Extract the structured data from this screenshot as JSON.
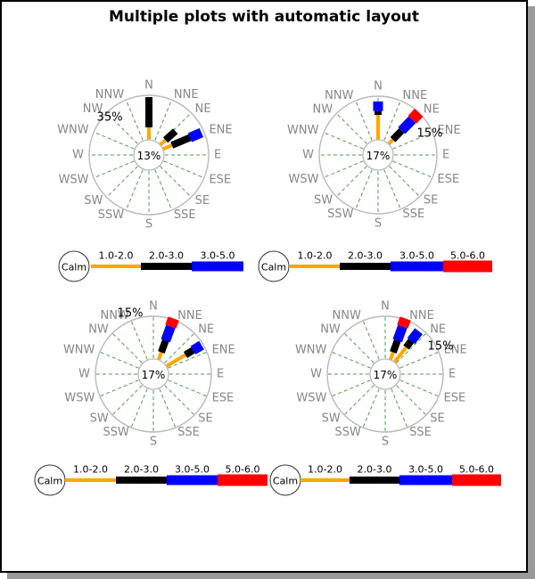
{
  "title": "Multiple plots with automatic layout",
  "colors": {
    "background": "#ffffff",
    "frame_border": "#000000",
    "frame_shadow": "#9a9a9a",
    "grid_line": "#4e9d4e",
    "circle_stroke": "#b9b9b9",
    "direction_label": "#878787",
    "text": "#000000"
  },
  "chart_data": {
    "type": "windrose",
    "title": "Multiple plots with automatic layout",
    "layout_hint": "2x2 grid of wind rose plots, each with a speed-range legend below",
    "direction_labels": [
      "N",
      "NNE",
      "NE",
      "ENE",
      "E",
      "ESE",
      "SE",
      "SSE",
      "S",
      "SSW",
      "SW",
      "WSW",
      "W",
      "WNW",
      "NW",
      "NNW"
    ],
    "speed_ranges": [
      {
        "label": "1.0-2.0",
        "color": "#ffa500",
        "width": 4
      },
      {
        "label": "2.0-3.0",
        "color": "#000000",
        "width": 8
      },
      {
        "label": "3.0-5.0",
        "color": "#0000ff",
        "width": 11
      },
      {
        "label": "5.0-6.0",
        "color": "#ff0000",
        "width": 13
      }
    ],
    "calm_label_text": "Calm",
    "roses": [
      {
        "calm_label": "13%",
        "calm_pct": 13,
        "scale_label": "35%",
        "spokes": [
          {
            "angle_deg": 0,
            "segments": [
              {
                "range": "1.0-2.0",
                "from": 0,
                "to": 0.28
              },
              {
                "range": "2.0-3.0",
                "from": 0.28,
                "to": 0.96
              }
            ]
          },
          {
            "angle_deg": 48,
            "segments": [
              {
                "range": "1.0-2.0",
                "from": 0,
                "to": 0.16
              },
              {
                "range": "2.0-3.0",
                "from": 0.16,
                "to": 0.46
              }
            ]
          },
          {
            "angle_deg": 67,
            "segments": [
              {
                "range": "1.0-2.0",
                "from": 0,
                "to": 0.22
              },
              {
                "range": "2.0-3.0",
                "from": 0.22,
                "to": 0.66
              },
              {
                "range": "3.0-5.0",
                "from": 0.66,
                "to": 0.94
              }
            ]
          }
        ]
      },
      {
        "calm_label": "17%",
        "calm_pct": 17,
        "scale_label": "15%",
        "spokes": [
          {
            "angle_deg": 0,
            "segments": [
              {
                "range": "1.0-2.0",
                "from": 0,
                "to": 0.57
              },
              {
                "range": "2.0-3.0",
                "from": 0.57,
                "to": 0.66
              },
              {
                "range": "3.0-5.0",
                "from": 0.66,
                "to": 0.88
              }
            ]
          },
          {
            "angle_deg": 44,
            "segments": [
              {
                "range": "1.0-2.0",
                "from": 0,
                "to": 0.14
              },
              {
                "range": "2.0-3.0",
                "from": 0.14,
                "to": 0.43
              },
              {
                "range": "3.0-5.0",
                "from": 0.43,
                "to": 0.78
              },
              {
                "range": "5.0-6.0",
                "from": 0.78,
                "to": 1.0
              }
            ]
          }
        ]
      },
      {
        "calm_label": "17%",
        "calm_pct": 17,
        "scale_label": "15%",
        "spokes": [
          {
            "angle_deg": 20,
            "segments": [
              {
                "range": "1.0-2.0",
                "from": 0,
                "to": 0.19
              },
              {
                "range": "2.0-3.0",
                "from": 0.19,
                "to": 0.48
              },
              {
                "range": "3.0-5.0",
                "from": 0.48,
                "to": 0.83
              },
              {
                "range": "5.0-6.0",
                "from": 0.83,
                "to": 1.03
              }
            ]
          },
          {
            "angle_deg": 59,
            "segments": [
              {
                "range": "1.0-2.0",
                "from": 0,
                "to": 0.52
              },
              {
                "range": "2.0-3.0",
                "from": 0.52,
                "to": 0.73
              },
              {
                "range": "3.0-5.0",
                "from": 0.73,
                "to": 0.96
              }
            ]
          }
        ]
      },
      {
        "calm_label": "17%",
        "calm_pct": 17,
        "scale_label": "15%",
        "spokes": [
          {
            "angle_deg": 20,
            "segments": [
              {
                "range": "1.0-2.0",
                "from": 0,
                "to": 0.19
              },
              {
                "range": "2.0-3.0",
                "from": 0.19,
                "to": 0.48
              },
              {
                "range": "3.0-5.0",
                "from": 0.48,
                "to": 0.83
              },
              {
                "range": "5.0-6.0",
                "from": 0.83,
                "to": 1.03
              }
            ]
          },
          {
            "angle_deg": 38,
            "segments": [
              {
                "range": "1.0-2.0",
                "from": 0,
                "to": 0.44
              },
              {
                "range": "2.0-3.0",
                "from": 0.44,
                "to": 0.63
              },
              {
                "range": "3.0-5.0",
                "from": 0.63,
                "to": 0.92
              }
            ]
          }
        ]
      }
    ],
    "legends": [
      {
        "calm_label": "Calm",
        "ranges": [
          "1.0-2.0",
          "2.0-3.0",
          "3.0-5.0"
        ]
      },
      {
        "calm_label": "Calm",
        "ranges": [
          "1.0-2.0",
          "2.0-3.0",
          "3.0-5.0",
          "5.0-6.0"
        ]
      },
      {
        "calm_label": "Calm",
        "ranges": [
          "1.0-2.0",
          "2.0-3.0",
          "3.0-5.0",
          "5.0-6.0"
        ]
      },
      {
        "calm_label": "Calm",
        "ranges": [
          "1.0-2.0",
          "2.0-3.0",
          "3.0-5.0",
          "5.0-6.0"
        ]
      }
    ]
  }
}
